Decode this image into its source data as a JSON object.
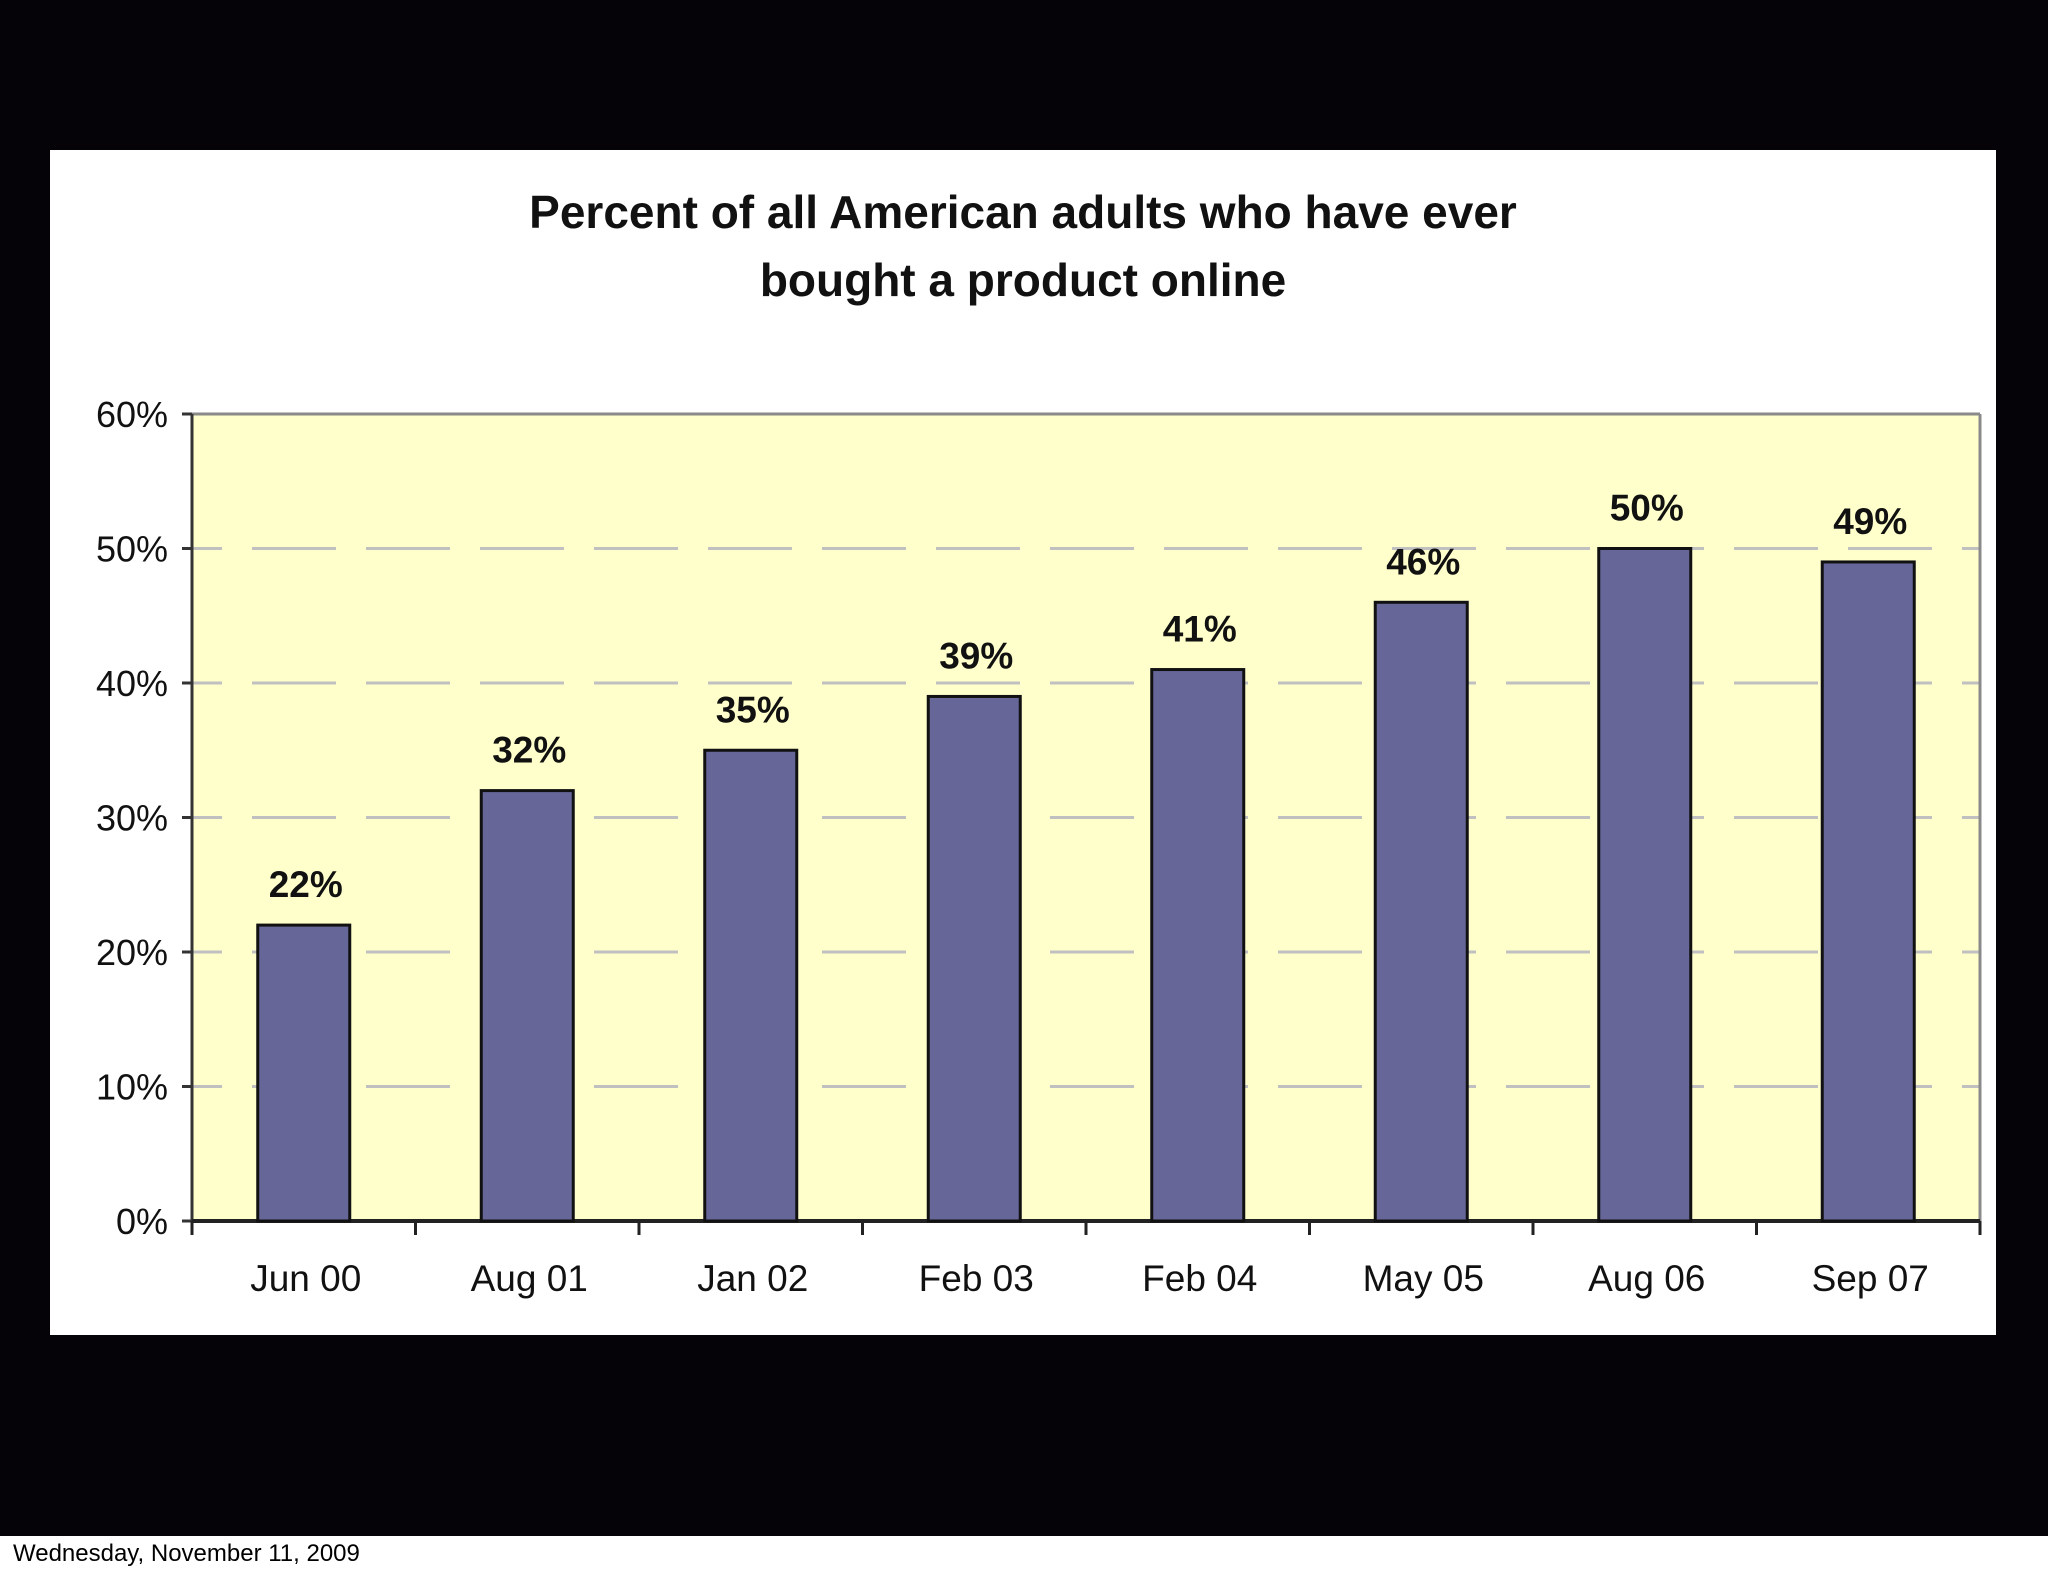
{
  "chart_data": {
    "type": "bar",
    "title_lines": [
      "Percent of all American adults who have ever",
      "bought a product online"
    ],
    "categories": [
      "Jun 00",
      "Aug 01",
      "Jan 02",
      "Feb 03",
      "Feb 04",
      "May 05",
      "Aug 06",
      "Sep 07"
    ],
    "values": [
      22,
      32,
      35,
      39,
      41,
      46,
      50,
      49
    ],
    "data_labels": [
      "22%",
      "32%",
      "35%",
      "39%",
      "41%",
      "46%",
      "50%",
      "49%"
    ],
    "yticks": [
      "0%",
      "10%",
      "20%",
      "30%",
      "40%",
      "50%",
      "60%"
    ],
    "ylim": [
      0,
      60
    ],
    "xlabel": "",
    "ylabel": "",
    "grid": "dashed horizontal",
    "legend": "none",
    "colors": {
      "bar": "#676699",
      "plot_background": "#ffffcc",
      "gridline": "#c0c0c0"
    }
  },
  "footer": {
    "date": "Wednesday, November 11, 2009"
  }
}
